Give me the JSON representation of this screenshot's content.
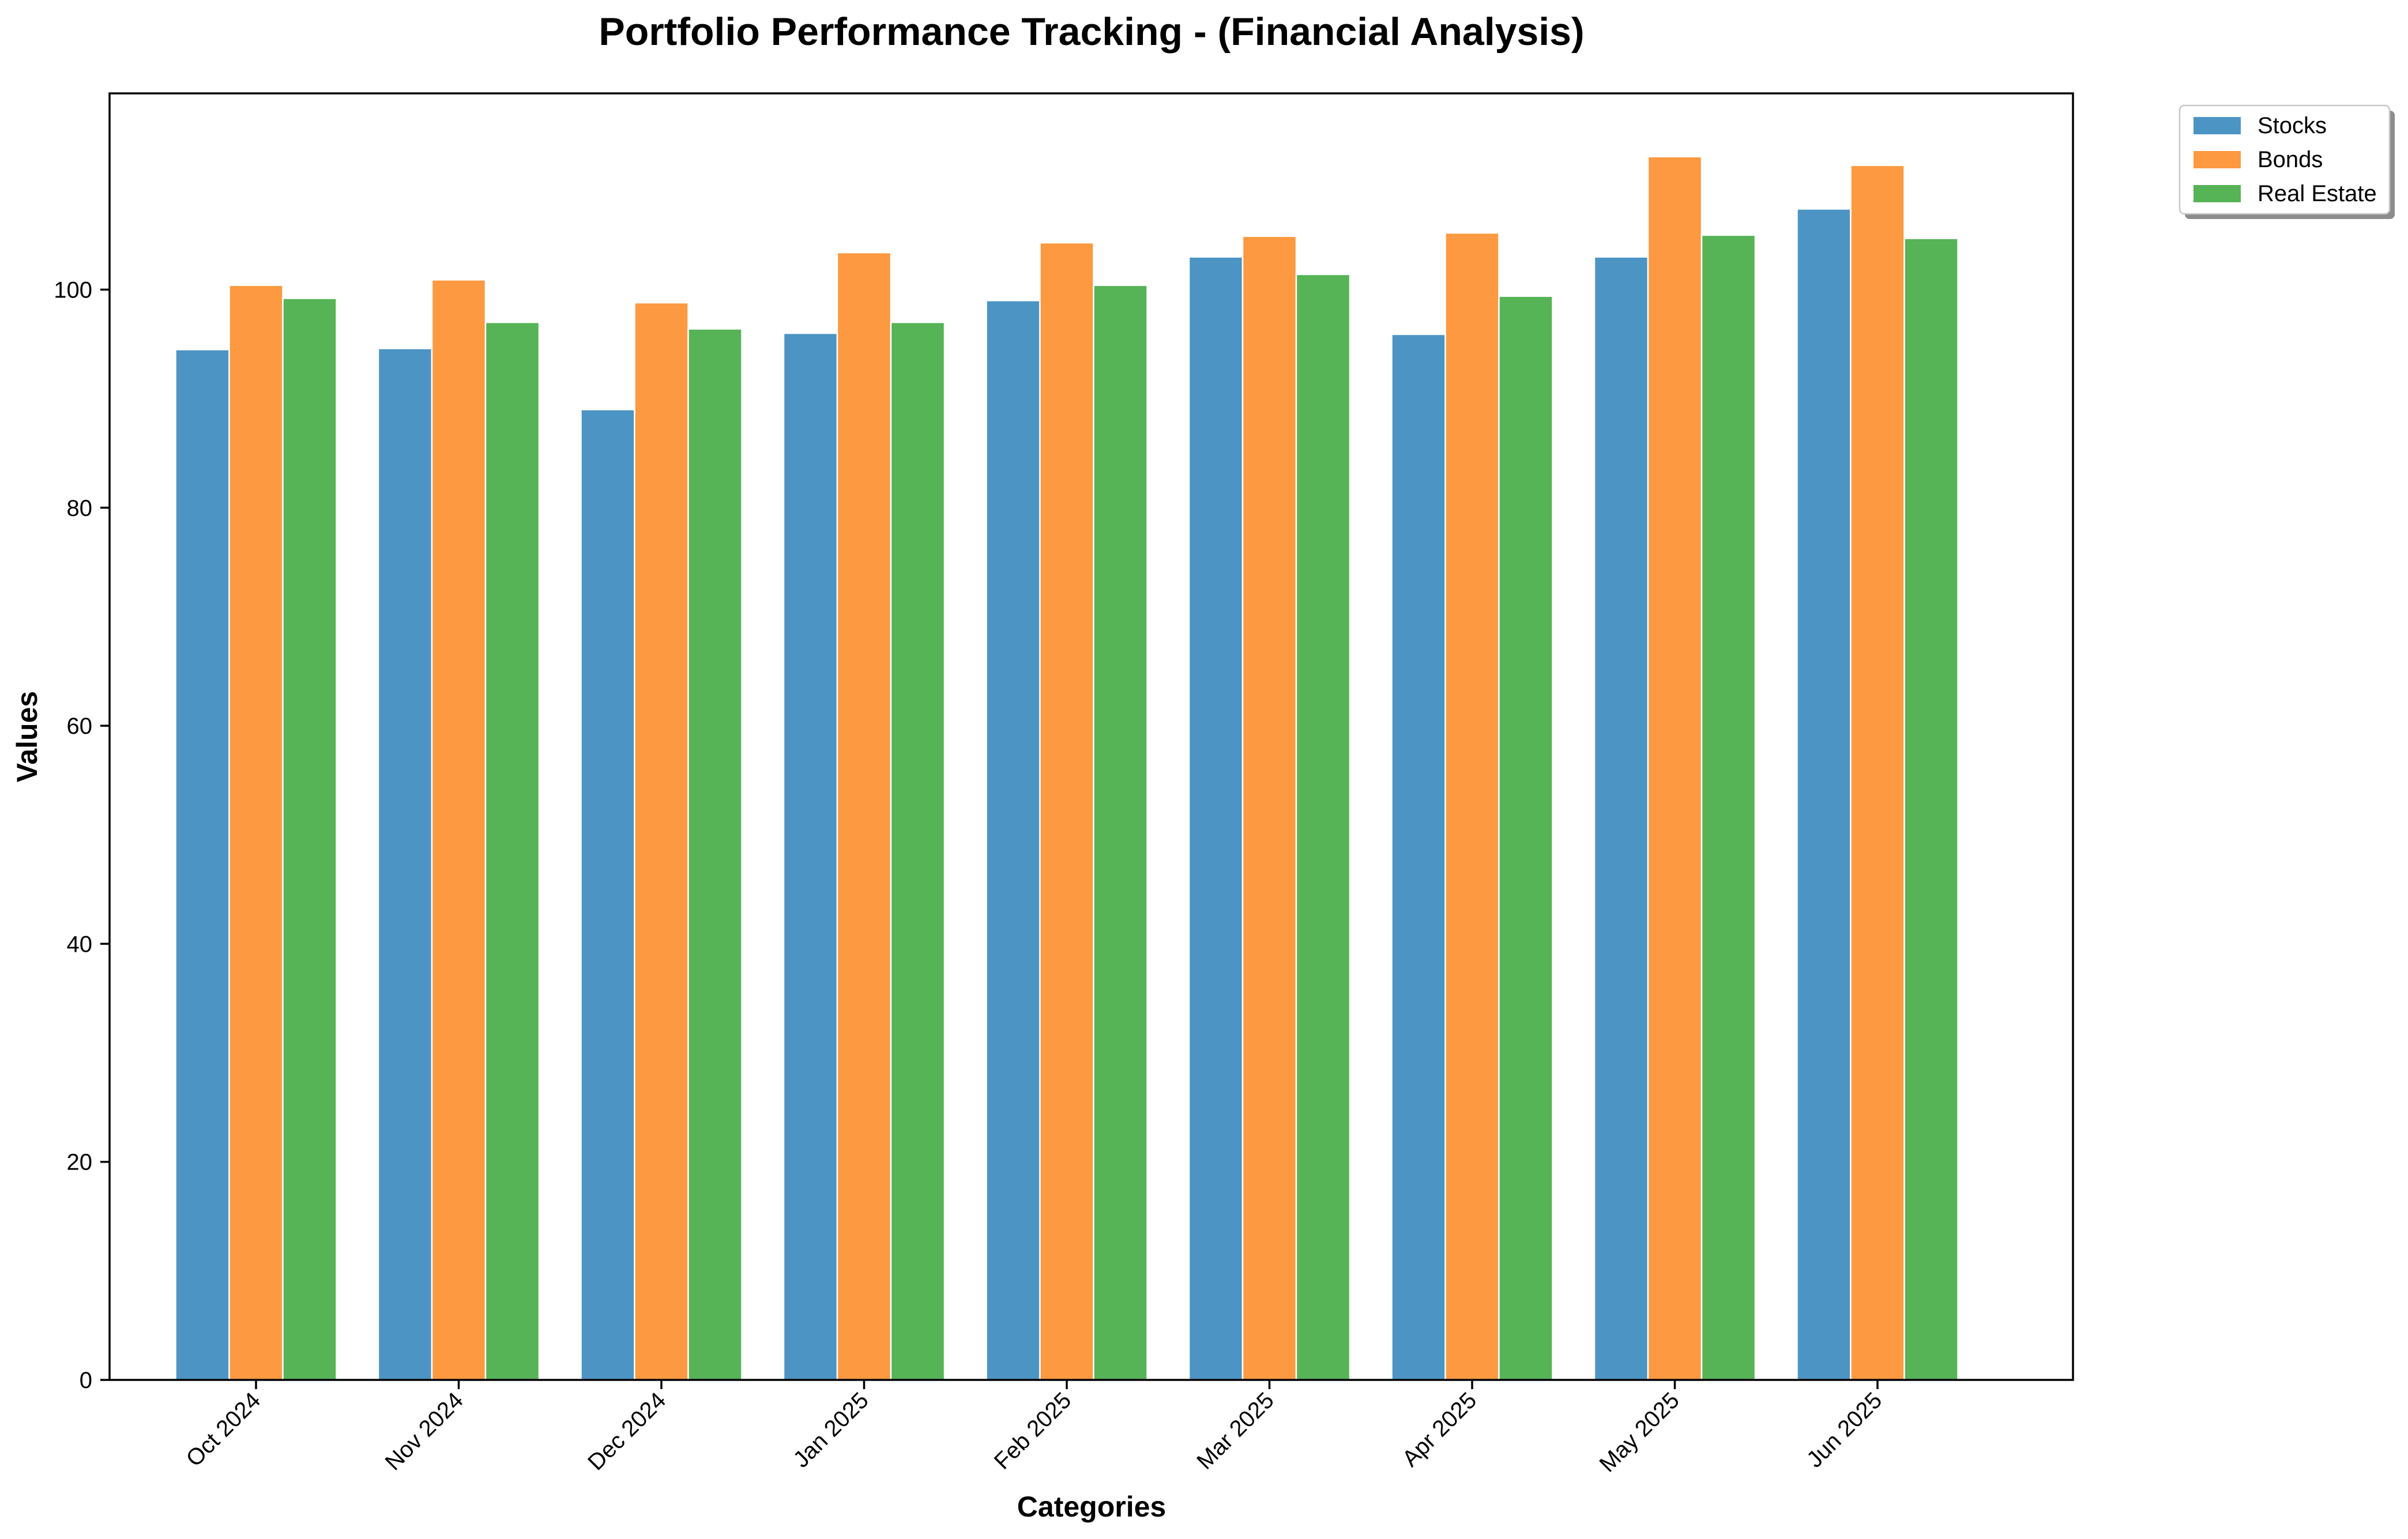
{
  "chart_data": {
    "type": "bar",
    "title": "Portfolio Performance Tracking - (Financial Analysis)",
    "xlabel": "Categories",
    "ylabel": "Values",
    "categories": [
      "Oct 2024",
      "Nov 2024",
      "Dec 2024",
      "Jan 2025",
      "Feb 2025",
      "Mar 2025",
      "Apr 2025",
      "May 2025",
      "Jun 2025"
    ],
    "series": [
      {
        "name": "Stocks",
        "color": "#4c94c4",
        "values": [
          94.5,
          94.6,
          89.0,
          96.0,
          99.0,
          103.0,
          95.9,
          103.0,
          107.4
        ]
      },
      {
        "name": "Bonds",
        "color": "#fd9940",
        "values": [
          100.4,
          100.9,
          98.8,
          103.4,
          104.3,
          104.9,
          105.2,
          112.2,
          111.4
        ]
      },
      {
        "name": "Real Estate",
        "color": "#56b356",
        "values": [
          99.2,
          97.0,
          96.4,
          97.0,
          100.4,
          101.4,
          99.4,
          105.0,
          104.7
        ]
      }
    ],
    "yticks": [
      0,
      20,
      40,
      60,
      80,
      100
    ],
    "ylim": [
      0,
      118
    ],
    "grid": false,
    "legend": "outside-top-right",
    "bar_edge_color": "#ffffff"
  }
}
